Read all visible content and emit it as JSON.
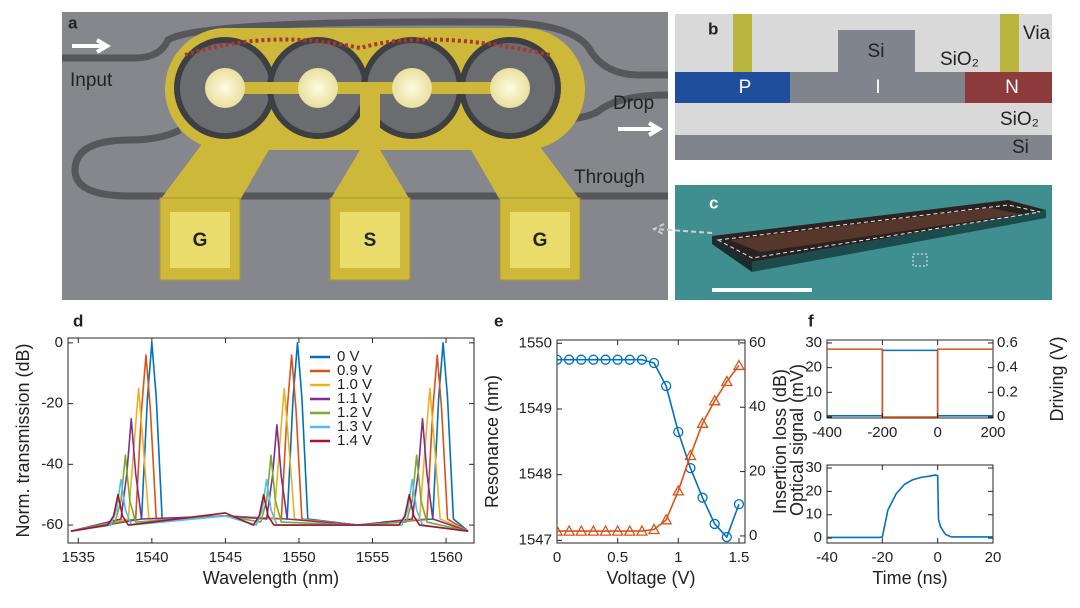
{
  "diagram": {
    "a": {
      "label": "a",
      "input": "Input",
      "drop": "Drop",
      "through": "Through",
      "pads": [
        "G",
        "S",
        "G"
      ]
    },
    "b": {
      "label": "b",
      "rib": "Si",
      "top_oxide": "SiO₂",
      "via": "Via",
      "p": "P",
      "i": "I",
      "n": "N",
      "box_oxide": "SiO₂",
      "substrate": "Si"
    },
    "c": {
      "label": "c"
    }
  },
  "chart_data": [
    {
      "type": "line",
      "label": "d",
      "xlabel": "Wavelength (nm)",
      "ylabel": "Norm. transmission (dB)",
      "xlim": [
        1534.3,
        1561.9
      ],
      "ylim": [
        -65.9,
        1.6
      ],
      "xticks": [
        1535,
        1540,
        1545,
        1550,
        1555,
        1560
      ],
      "yticks": [
        -60,
        -40,
        -20,
        0
      ],
      "legend": "upper right",
      "series": [
        {
          "name": "0 V",
          "color": "#0072BD",
          "x": [
            1534.5,
            1539.3,
            1539.7,
            1540,
            1540.3,
            1540.7,
            1545,
            1549.2,
            1549.6,
            1549.9,
            1550.2,
            1550.6,
            1554,
            1559.1,
            1559.5,
            1559.8,
            1560.1,
            1560.5,
            1561.5
          ],
          "values": [
            -62,
            -58,
            -18,
            0,
            -18,
            -58,
            -57,
            -58,
            -18,
            0,
            -18,
            -58,
            -60,
            -58,
            -18,
            0,
            -18,
            -58,
            -62
          ]
        },
        {
          "name": "0.9 V",
          "color": "#D95319",
          "x": [
            1534.5,
            1538.9,
            1539.3,
            1539.6,
            1539.9,
            1540.3,
            1545,
            1548.8,
            1549.2,
            1549.5,
            1549.8,
            1550.2,
            1554,
            1558.7,
            1559.1,
            1559.4,
            1559.7,
            1560.1,
            1561.5
          ],
          "values": [
            -62,
            -58,
            -22,
            -4,
            -22,
            -58,
            -57,
            -58,
            -22,
            -4,
            -22,
            -58,
            -60,
            -58,
            -22,
            -4,
            -22,
            -58,
            -62
          ]
        },
        {
          "name": "1.0 V",
          "color": "#EDB120",
          "x": [
            1534.5,
            1538.4,
            1538.8,
            1539.1,
            1539.4,
            1539.8,
            1545,
            1548.3,
            1548.7,
            1549.0,
            1549.3,
            1549.7,
            1554,
            1558.2,
            1558.6,
            1558.9,
            1559.2,
            1559.6,
            1561.5
          ],
          "values": [
            -62,
            -58,
            -33,
            -15,
            -33,
            -58,
            -57,
            -58,
            -33,
            -15,
            -33,
            -58,
            -60,
            -58,
            -33,
            -15,
            -33,
            -58,
            -62
          ]
        },
        {
          "name": "1.1 V",
          "color": "#7E2F8E",
          "x": [
            1534.5,
            1537.9,
            1538.3,
            1538.6,
            1538.9,
            1539.3,
            1545,
            1547.8,
            1548.2,
            1548.5,
            1548.8,
            1549.2,
            1554,
            1557.7,
            1558.1,
            1558.4,
            1558.7,
            1559.1,
            1561.5
          ],
          "values": [
            -62,
            -58,
            -43,
            -25,
            -43,
            -58,
            -57,
            -58,
            -44,
            -27,
            -44,
            -58,
            -60,
            -58,
            -43,
            -25,
            -43,
            -58,
            -62
          ]
        },
        {
          "name": "1.2 V",
          "color": "#77AC30",
          "x": [
            1534.5,
            1537.5,
            1537.9,
            1538.2,
            1538.5,
            1538.9,
            1545,
            1547.4,
            1547.8,
            1548.1,
            1548.4,
            1548.8,
            1554,
            1557.3,
            1557.7,
            1558.0,
            1558.3,
            1558.7,
            1561.5
          ],
          "values": [
            -62,
            -59,
            -52,
            -37,
            -52,
            -59,
            -57,
            -59,
            -52,
            -37,
            -52,
            -59,
            -60,
            -59,
            -52,
            -37,
            -52,
            -59,
            -62
          ]
        },
        {
          "name": "1.3 V",
          "color": "#4DBEEE",
          "x": [
            1534.5,
            1537.2,
            1537.6,
            1537.9,
            1538.2,
            1538.6,
            1545,
            1547.1,
            1547.5,
            1547.8,
            1548.1,
            1548.5,
            1554,
            1557.0,
            1557.4,
            1557.7,
            1558.0,
            1558.4,
            1561.5
          ],
          "values": [
            -62,
            -60,
            -55,
            -45,
            -55,
            -60,
            -57,
            -60,
            -55,
            -45,
            -55,
            -60,
            -60,
            -60,
            -55,
            -45,
            -55,
            -60,
            -62
          ]
        },
        {
          "name": "1.4 V",
          "color": "#A2142F",
          "x": [
            1534.5,
            1537.0,
            1537.4,
            1537.7,
            1538.0,
            1538.4,
            1545,
            1546.9,
            1547.3,
            1547.6,
            1547.9,
            1548.3,
            1554,
            1556.8,
            1557.2,
            1557.5,
            1557.8,
            1558.2,
            1561.5
          ],
          "values": [
            -62,
            -60,
            -57,
            -50,
            -57,
            -60,
            -56,
            -60,
            -57,
            -50,
            -57,
            -60,
            -60,
            -60,
            -57,
            -50,
            -57,
            -60,
            -62
          ]
        }
      ]
    },
    {
      "type": "line",
      "label": "e",
      "xlabel": "Voltage (V)",
      "ylabel": "Resonance (nm)",
      "y2label": "Insertion loss (dB)",
      "xlim": [
        0,
        1.55
      ],
      "ylim": [
        1546.96,
        1550.05
      ],
      "y2lim": [
        -2.2,
        60.9
      ],
      "xticks": [
        0,
        0.5,
        1,
        1.5
      ],
      "yticks": [
        1547,
        1548,
        1549,
        1550
      ],
      "y2ticks": [
        0,
        20,
        40,
        60
      ],
      "x": [
        0,
        0.1,
        0.2,
        0.3,
        0.4,
        0.5,
        0.6,
        0.7,
        0.8,
        0.9,
        1.0,
        1.1,
        1.2,
        1.3,
        1.4,
        1.5
      ],
      "series": [
        {
          "color": "#0072BD",
          "marker": "circle",
          "values": [
            1549.75,
            1549.75,
            1549.75,
            1549.75,
            1549.75,
            1549.75,
            1549.75,
            1549.75,
            1549.7,
            1549.35,
            1548.65,
            1548.1,
            1547.65,
            1547.25,
            1547.05,
            1547.55
          ]
        },
        {
          "color": "#D95319",
          "marker": "triangle",
          "axis": "y2",
          "values": [
            1.5,
            1.5,
            1.5,
            1.5,
            1.5,
            1.5,
            1.5,
            1.5,
            2,
            5,
            14,
            25,
            35,
            42,
            48,
            53
          ]
        }
      ]
    },
    {
      "type": "line",
      "label": "f",
      "ylabel": "Optical signal (mV)",
      "y2label": "Driving (V)",
      "xlim": [
        -400,
        200
      ],
      "ylim": [
        -0.4,
        31.2
      ],
      "y2lim": [
        -0.008,
        0.624
      ],
      "xticks": [
        -400,
        -200,
        0,
        200
      ],
      "yticks": [
        0,
        10,
        20,
        30
      ],
      "y2ticks": [
        0,
        0.2,
        0.4,
        0.6
      ],
      "series": [
        {
          "color": "#0072BD",
          "x": [
            -400,
            -200,
            -200,
            0,
            0,
            200
          ],
          "values": [
            0.5,
            0.5,
            27,
            27,
            0.5,
            0.5
          ]
        },
        {
          "color": "#D95319",
          "axis": "y2",
          "x": [
            -400,
            -200,
            -200,
            0,
            0,
            200
          ],
          "values": [
            0.55,
            0.55,
            0,
            0,
            0.55,
            0.55
          ]
        }
      ]
    },
    {
      "type": "line",
      "xlabel": "Time (ns)",
      "xlim": [
        -40,
        20
      ],
      "ylim": [
        -2.1,
        31.3
      ],
      "xticks": [
        -40,
        -20,
        0,
        20
      ],
      "yticks": [
        0,
        10,
        20,
        30
      ],
      "series": [
        {
          "color": "#0072BD",
          "x": [
            -40,
            -21,
            -20,
            -18,
            -15,
            -12,
            -9,
            -6,
            -3,
            -1,
            0,
            0.3,
            1,
            2,
            3,
            5,
            20
          ],
          "values": [
            0.3,
            0.3,
            0.5,
            12,
            19,
            23,
            25,
            26,
            26.5,
            27,
            26.8,
            8,
            5,
            3,
            1.5,
            0.5,
            0.5
          ]
        }
      ]
    }
  ]
}
